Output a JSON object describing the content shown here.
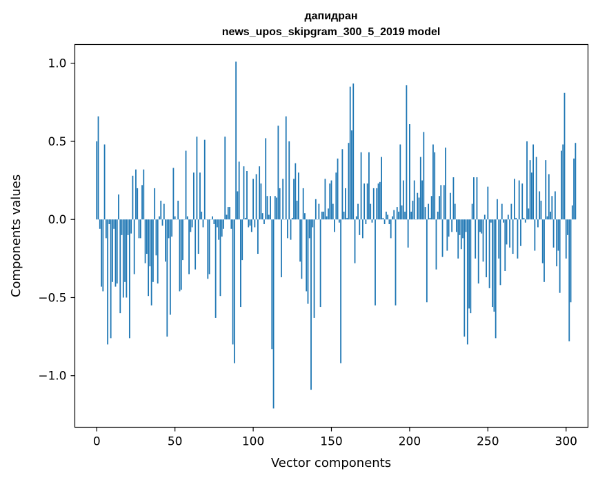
{
  "chart_data": {
    "type": "bar",
    "title_line1": "дапидран",
    "title_line2": "news_upos_skipgram_300_5_2019 model",
    "xlabel": "Vector components",
    "ylabel": "Components values",
    "xlim": [
      -14,
      314
    ],
    "ylim": [
      -1.33,
      1.12
    ],
    "x_ticks": [
      0,
      50,
      100,
      150,
      200,
      250,
      300
    ],
    "x_tick_labels": [
      "0",
      "50",
      "100",
      "150",
      "200",
      "250",
      "300"
    ],
    "y_ticks": [
      -1.0,
      -0.5,
      0.0,
      0.5,
      1.0
    ],
    "y_tick_labels": [
      "−1.0",
      "−0.5",
      "0.0",
      "0.5",
      "1.0"
    ],
    "bar_color": "#1f77b4",
    "values": [
      0.5,
      0.66,
      -0.06,
      -0.43,
      -0.46,
      0.48,
      -0.12,
      -0.8,
      -0.03,
      -0.76,
      -0.4,
      -0.06,
      -0.43,
      -0.41,
      0.16,
      -0.6,
      -0.1,
      -0.5,
      -0.4,
      -0.5,
      -0.1,
      -0.76,
      -0.09,
      0.28,
      -0.35,
      0.32,
      0.2,
      -0.12,
      -0.12,
      0.22,
      0.32,
      -0.28,
      -0.22,
      -0.49,
      -0.3,
      -0.55,
      -0.4,
      0.2,
      -0.23,
      -0.41,
      0.02,
      0.12,
      -0.04,
      0.1,
      -0.27,
      -0.75,
      -0.12,
      -0.61,
      -0.11,
      0.33,
      0.02,
      0.0,
      0.12,
      -0.46,
      -0.45,
      -0.26,
      0.0,
      0.44,
      0.02,
      -0.35,
      -0.08,
      -0.05,
      0.3,
      -0.32,
      0.53,
      -0.22,
      0.3,
      0.05,
      -0.05,
      0.51,
      0.0,
      -0.38,
      -0.35,
      0.0,
      0.02,
      -0.03,
      -0.63,
      -0.05,
      -0.13,
      -0.49,
      -0.11,
      -0.06,
      0.53,
      0.03,
      0.08,
      0.08,
      -0.06,
      -0.8,
      -0.92,
      1.01,
      0.18,
      0.37,
      -0.56,
      -0.26,
      0.34,
      0.01,
      0.31,
      -0.05,
      -0.04,
      -0.08,
      0.26,
      -0.05,
      0.29,
      -0.22,
      0.34,
      0.23,
      0.04,
      -0.03,
      0.52,
      0.15,
      0.03,
      0.15,
      -0.83,
      -1.21,
      0.15,
      0.14,
      0.6,
      0.2,
      -0.37,
      0.26,
      0.0,
      0.66,
      -0.12,
      0.5,
      -0.13,
      0.01,
      0.26,
      0.36,
      0.12,
      0.3,
      -0.27,
      -0.38,
      0.2,
      0.04,
      -0.46,
      -0.54,
      -0.12,
      -1.09,
      -0.05,
      -0.63,
      0.13,
      0.0,
      0.1,
      -0.56,
      0.05,
      0.05,
      0.26,
      0.02,
      0.07,
      0.23,
      0.25,
      0.1,
      -0.08,
      0.3,
      0.39,
      -0.02,
      -0.92,
      0.45,
      0.05,
      0.2,
      0.01,
      0.49,
      0.85,
      0.57,
      0.87,
      -0.28,
      0.02,
      0.1,
      -0.1,
      0.43,
      -0.12,
      0.23,
      -0.03,
      0.23,
      0.43,
      0.1,
      -0.02,
      0.2,
      -0.55,
      0.2,
      0.23,
      0.24,
      0.4,
      0.01,
      -0.03,
      0.05,
      0.03,
      -0.03,
      -0.12,
      0.02,
      0.06,
      -0.55,
      0.08,
      0.05,
      0.48,
      0.09,
      0.25,
      0.05,
      0.86,
      -0.18,
      0.61,
      0.05,
      0.12,
      0.25,
      0.0,
      0.17,
      0.14,
      0.4,
      0.25,
      0.56,
      0.08,
      -0.53,
      0.1,
      0.01,
      0.15,
      0.48,
      0.43,
      -0.32,
      0.05,
      0.15,
      0.22,
      -0.24,
      0.22,
      0.46,
      -0.2,
      -0.11,
      0.17,
      -0.08,
      0.27,
      0.1,
      -0.08,
      -0.25,
      -0.1,
      -0.19,
      -0.12,
      -0.75,
      -0.08,
      -0.8,
      -0.57,
      -0.6,
      0.1,
      0.27,
      -0.25,
      0.27,
      -0.41,
      -0.08,
      -0.09,
      -0.27,
      0.03,
      -0.37,
      0.21,
      -0.44,
      -0.02,
      -0.56,
      -0.59,
      -0.76,
      0.13,
      -0.25,
      -0.42,
      0.1,
      -0.02,
      -0.33,
      -0.16,
      0.03,
      -0.18,
      0.1,
      -0.22,
      0.26,
      0.01,
      -0.25,
      0.25,
      -0.17,
      0.23,
      0.01,
      -0.02,
      0.5,
      0.07,
      0.38,
      0.3,
      0.48,
      -0.2,
      0.4,
      -0.05,
      0.18,
      0.12,
      -0.28,
      -0.4,
      0.38,
      0.02,
      0.29,
      0.05,
      0.15,
      -0.18,
      0.18,
      -0.3,
      -0.2,
      -0.47,
      0.44,
      0.48,
      0.81,
      -0.25,
      -0.1,
      -0.78,
      -0.53,
      0.09,
      0.39,
      0.49
    ]
  }
}
